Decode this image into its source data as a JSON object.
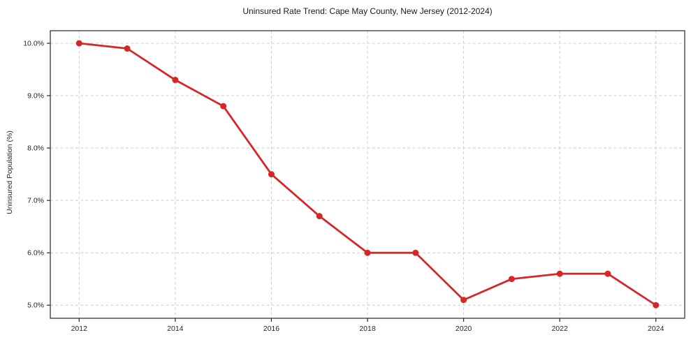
{
  "chart_data": {
    "type": "line",
    "title": "Uninsured Rate Trend: Cape May County, New Jersey (2012-2024)",
    "xlabel": "",
    "ylabel": "Uninsured Population (%)",
    "x": [
      2012,
      2013,
      2014,
      2015,
      2016,
      2017,
      2018,
      2019,
      2020,
      2021,
      2022,
      2023,
      2024
    ],
    "series": [
      {
        "name": "Uninsured Population (%)",
        "color": "#d62728",
        "values": [
          10.0,
          9.9,
          9.3,
          8.8,
          7.5,
          6.7,
          6.0,
          6.0,
          5.1,
          5.5,
          5.6,
          5.6,
          5.0
        ]
      }
    ],
    "xticks": [
      2012,
      2014,
      2016,
      2018,
      2020,
      2022,
      2024
    ],
    "xtick_labels": [
      "2012",
      "2014",
      "2016",
      "2018",
      "2020",
      "2022",
      "2024"
    ],
    "yticks": [
      5.0,
      6.0,
      7.0,
      8.0,
      9.0,
      10.0
    ],
    "ytick_labels": [
      "5.0%",
      "6.0%",
      "7.0%",
      "8.0%",
      "9.0%",
      "10.0%"
    ],
    "xlim": [
      2011.4,
      2024.6
    ],
    "ylim": [
      4.75,
      10.24
    ],
    "grid": true,
    "grid_on": "both",
    "grid_style": "dashed",
    "grid_color": "#cccccc",
    "axis_color": "#262626",
    "tick_label_color": "#262626",
    "background": "#ffffff",
    "legend": "none",
    "marker": "circle",
    "marker_radius": 4.5,
    "line_width": 2.8
  }
}
